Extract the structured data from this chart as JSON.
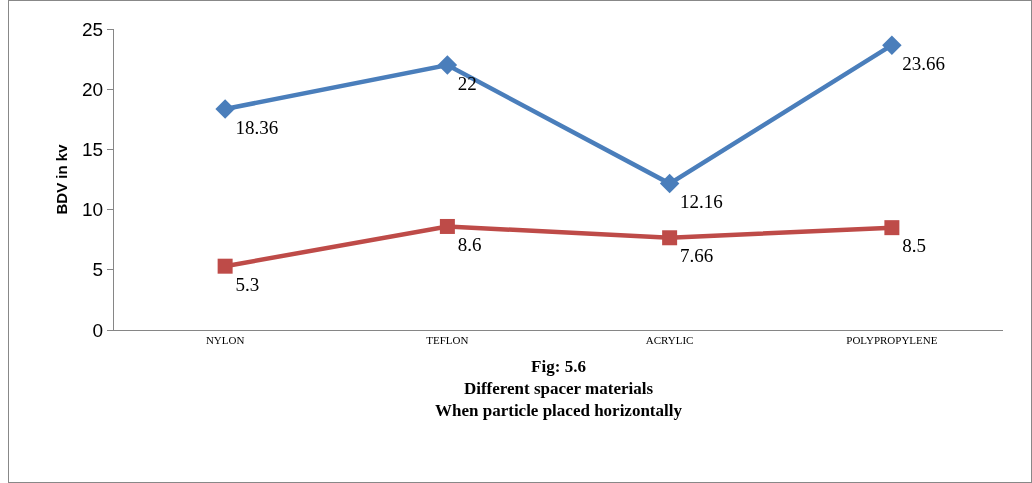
{
  "chart_data": {
    "type": "line",
    "xlabel": "Fig: 5.6\nDifferent spacer materials\nWhen particle placed horizontally",
    "ylabel": "BDV in kv",
    "categories": [
      "NYLON",
      "TEFLON",
      "ACRYLIC",
      "POLYPROPYLENE"
    ],
    "series": [
      {
        "color": "#4a7ebb",
        "marker": "diamond",
        "values": [
          18.36,
          22,
          12.16,
          23.66
        ]
      },
      {
        "color": "#be4b48",
        "marker": "square",
        "values": [
          5.3,
          8.6,
          7.66,
          8.5
        ]
      }
    ],
    "ylim": [
      0,
      25
    ],
    "yticks": [
      0,
      5,
      10,
      15,
      20,
      25
    ],
    "grid": false,
    "data_labels": true,
    "line_style": "solid"
  }
}
